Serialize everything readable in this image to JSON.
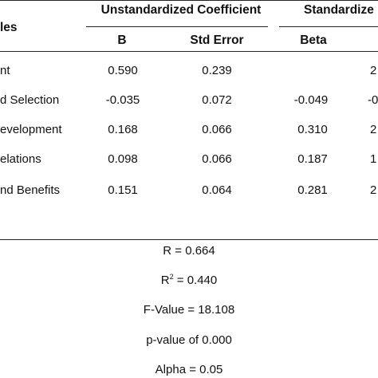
{
  "table": {
    "header": {
      "variables_label": "les",
      "group_unstandardized": "Unstandardized Coefficient",
      "group_standardized": "Standardize",
      "col_b": "B",
      "col_std_error": "Std Error",
      "col_beta": "Beta"
    },
    "rows": [
      {
        "label": "nt",
        "b": "0.590",
        "std_error": "0.239",
        "beta": "",
        "extra": "2"
      },
      {
        "label": "d Selection",
        "b": "-0.035",
        "std_error": "0.072",
        "beta": "-0.049",
        "extra": "-0"
      },
      {
        "label": "evelopment",
        "b": "0.168",
        "std_error": "0.066",
        "beta": "0.310",
        "extra": "2"
      },
      {
        "label": "elations",
        "b": "0.098",
        "std_error": "0.066",
        "beta": "0.187",
        "extra": "1"
      },
      {
        "label": "nd Benefits",
        "b": "0.151",
        "std_error": "0.064",
        "beta": "0.281",
        "extra": "2"
      }
    ]
  },
  "stats": {
    "r": "R = 0.664",
    "r2_base": "R",
    "r2_exp": "2",
    "r2_value": " = 0.440",
    "f_value": "F-Value = 18.108",
    "p_value": "p-value of 0.000",
    "alpha": "Alpha = 0.05"
  }
}
